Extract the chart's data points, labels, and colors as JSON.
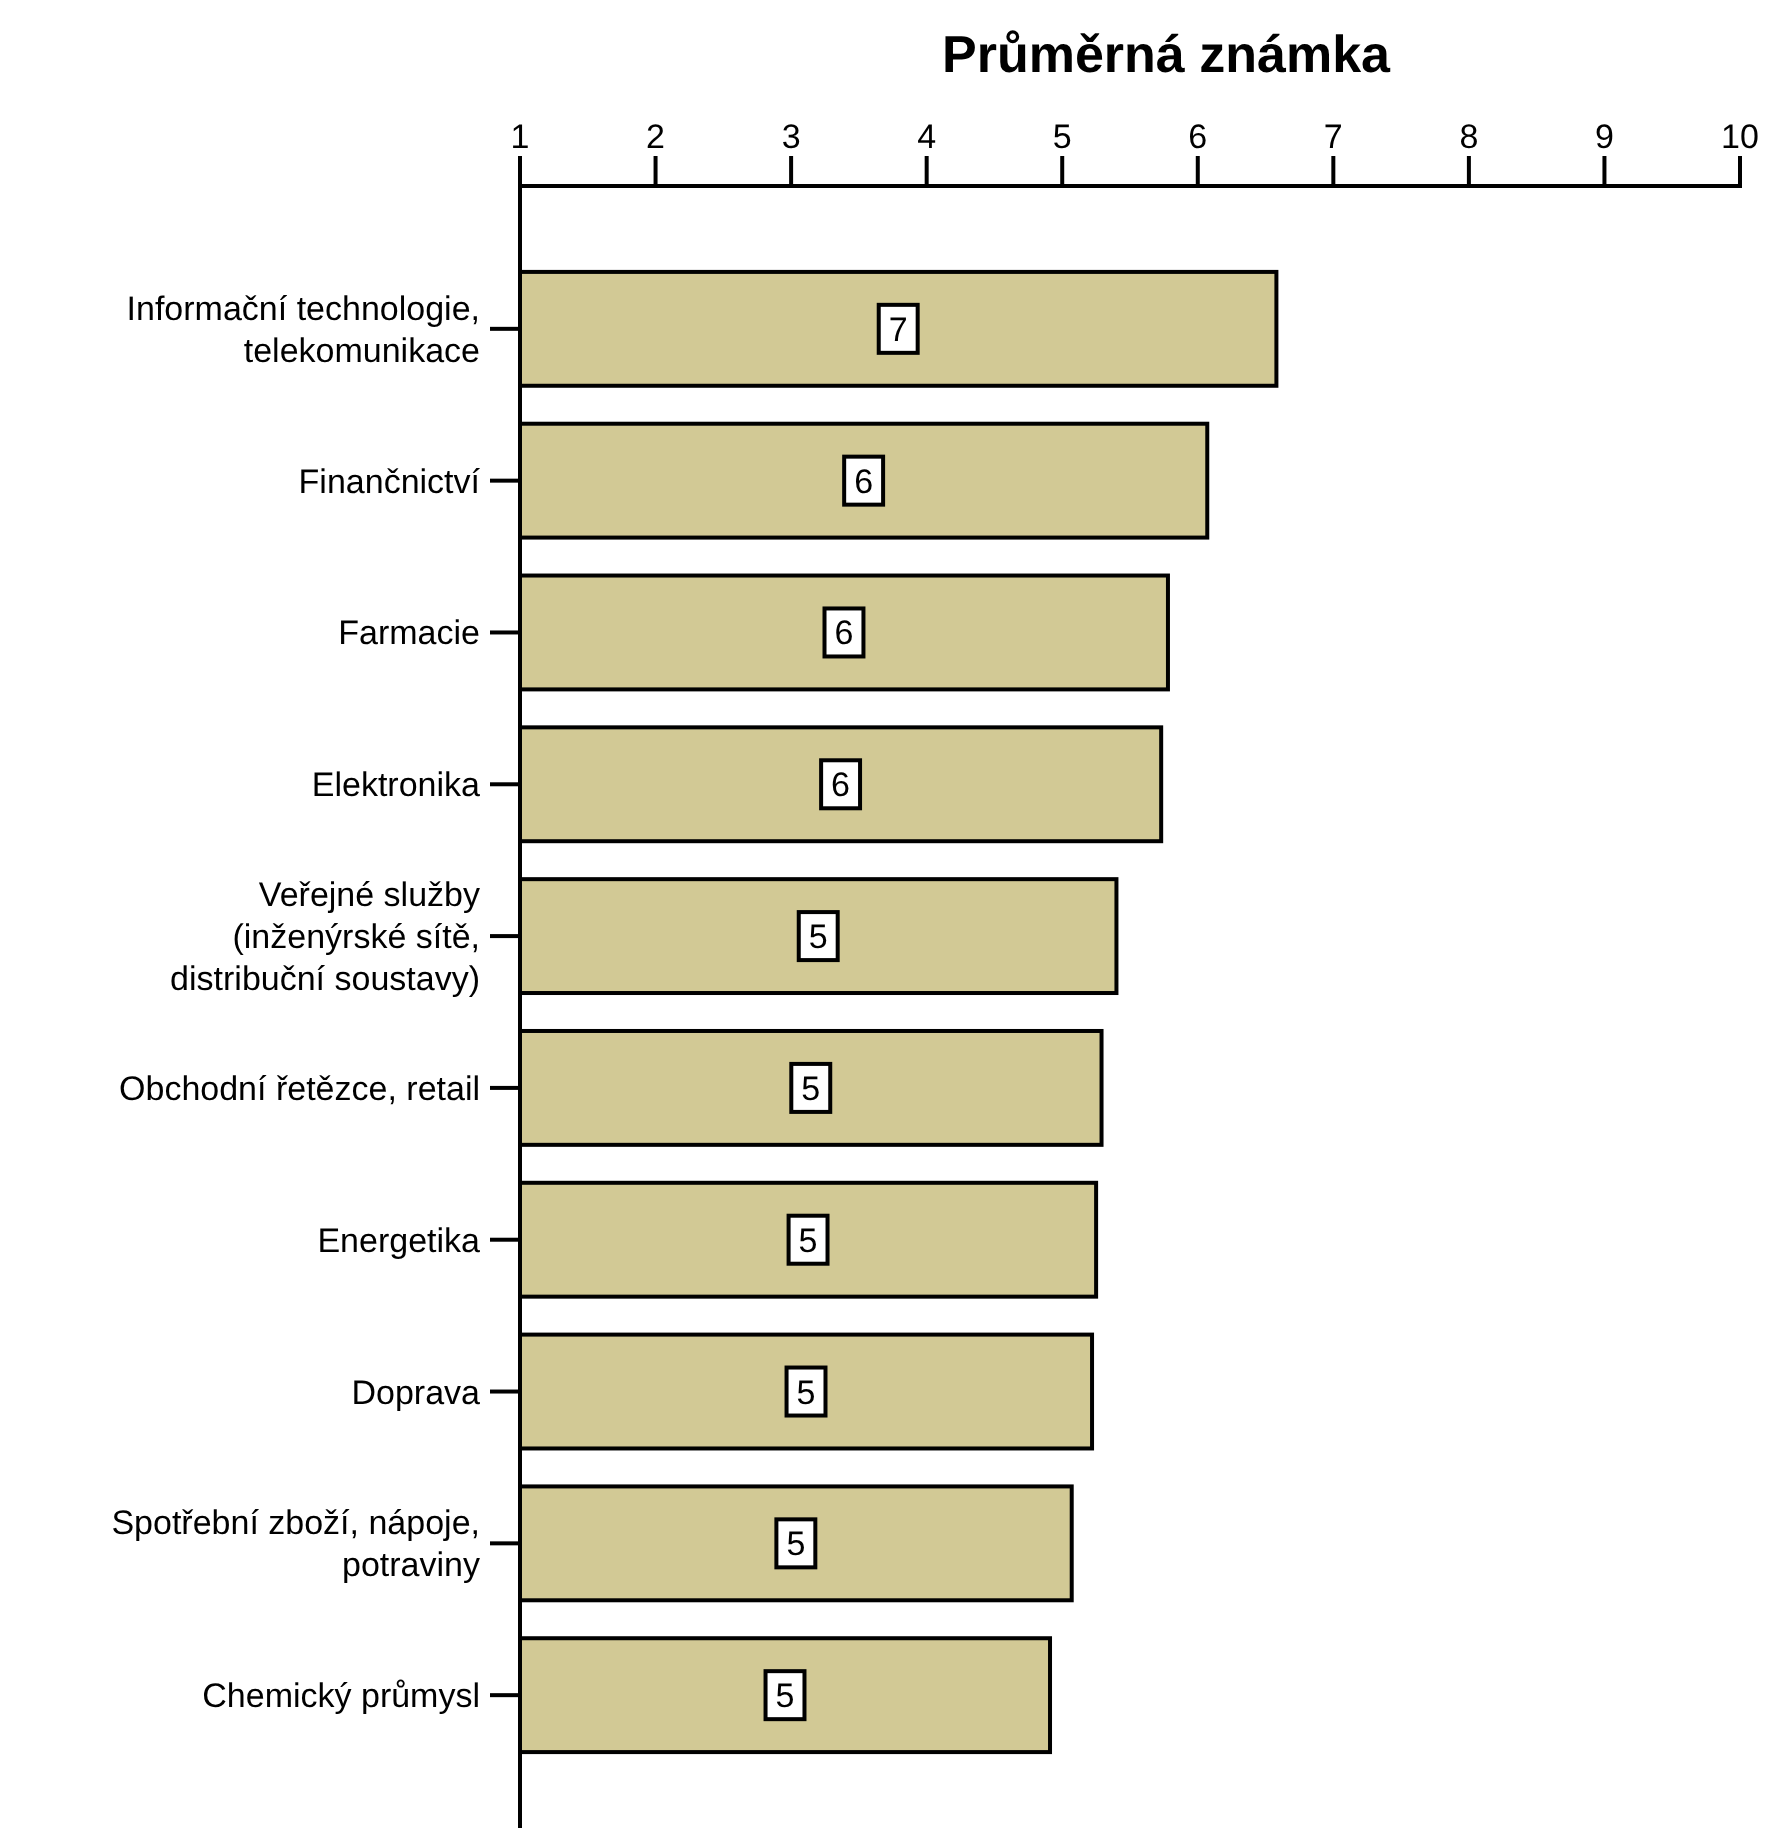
{
  "chart_data": {
    "type": "bar",
    "orientation": "horizontal",
    "xlabel": "Průměrná známka",
    "categories": [
      "Informační technologie,\ntelekomunikace",
      "Finančnictví",
      "Farmacie",
      "Elektronika",
      "Veřejné služby\n(inženýrské sítě,\ndistribuční soustavy)",
      "Obchodní řetězce, retail",
      "Energetika",
      "Doprava",
      "Spotřební zboží, nápoje,\npotraviny",
      "Chemický průmysl"
    ],
    "values": [
      6.58,
      6.07,
      5.78,
      5.73,
      5.4,
      5.29,
      5.25,
      5.22,
      5.07,
      4.91
    ],
    "value_labels": [
      "7",
      "6",
      "6",
      "6",
      "5",
      "5",
      "5",
      "5",
      "5",
      "5"
    ],
    "color": "#d2c995",
    "xlim": [
      1,
      10
    ],
    "xticks": [
      1,
      2,
      3,
      4,
      5,
      6,
      7,
      8,
      9,
      10
    ],
    "grid": false
  }
}
